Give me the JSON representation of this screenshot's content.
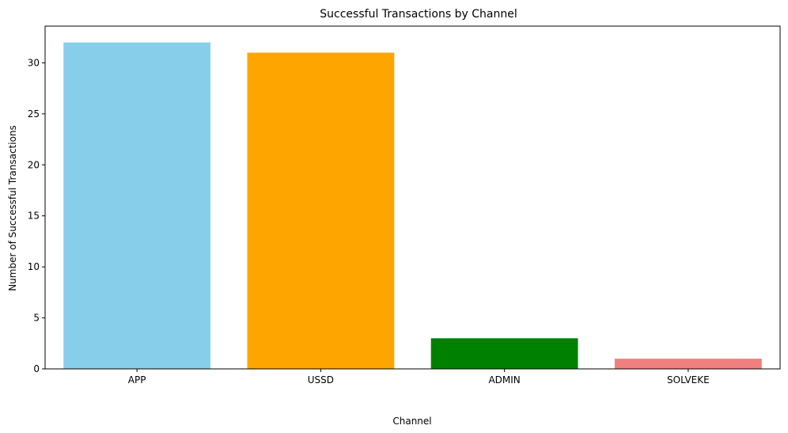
{
  "chart_data": {
    "type": "bar",
    "title": "Successful Transactions by Channel",
    "xlabel": "Channel",
    "ylabel": "Number of Successful Transactions",
    "categories": [
      "APP",
      "USSD",
      "ADMIN",
      "SOLVEKE"
    ],
    "values": [
      32,
      31,
      3,
      1
    ],
    "colors": [
      "#87ceeb",
      "#ffa500",
      "#008000",
      "#f08080"
    ],
    "ylim": [
      0,
      33.6
    ],
    "yticks": [
      0,
      5,
      10,
      15,
      20,
      25,
      30
    ],
    "grid": false,
    "legend": "none"
  }
}
